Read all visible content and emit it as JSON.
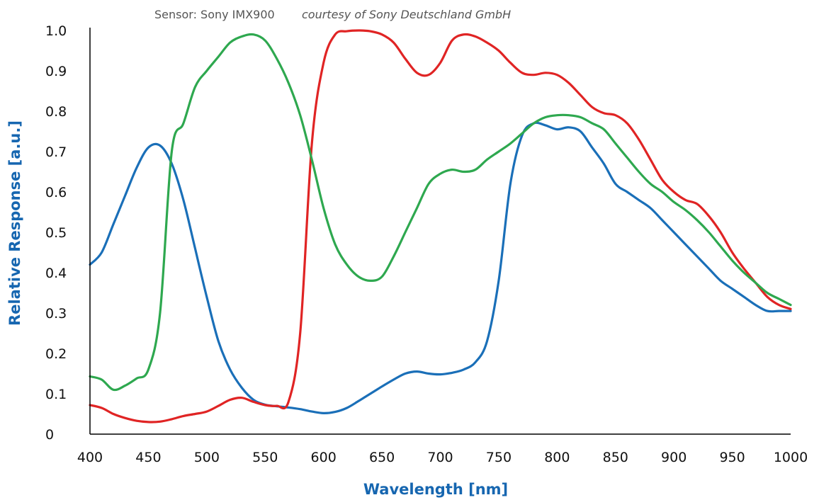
{
  "chart_data": {
    "type": "line",
    "title": "",
    "subtitle_sensor": "Sensor: Sony IMX900",
    "subtitle_credit": "courtesy of Sony Deutschland GmbH",
    "xlabel": "Wavelength [nm]",
    "ylabel": "Relative Response [a.u.]",
    "xlim": [
      400,
      1000
    ],
    "ylim": [
      0,
      1.0
    ],
    "x_ticks": [
      "400",
      "450",
      "500",
      "550",
      "600",
      "650",
      "700",
      "750",
      "800",
      "850",
      "900",
      "950",
      "1000"
    ],
    "y_ticks": [
      "0",
      "0.1",
      "0.2",
      "0.3",
      "0.4",
      "0.5",
      "0.6",
      "0.7",
      "0.8",
      "0.9",
      "1.0"
    ],
    "grid": false,
    "legend": "none",
    "axis_title_color": "#1666b0",
    "series": [
      {
        "color": "#1a6fb8",
        "x": [
          400,
          410,
          420,
          430,
          440,
          450,
          460,
          470,
          480,
          490,
          500,
          510,
          520,
          530,
          540,
          550,
          560,
          570,
          580,
          590,
          600,
          610,
          620,
          630,
          640,
          650,
          660,
          670,
          680,
          690,
          700,
          710,
          720,
          730,
          740,
          750,
          760,
          770,
          780,
          790,
          800,
          810,
          820,
          830,
          840,
          850,
          860,
          870,
          880,
          890,
          900,
          910,
          920,
          930,
          940,
          950,
          960,
          970,
          980,
          990,
          1000
        ],
        "values": [
          0.42,
          0.45,
          0.52,
          0.59,
          0.66,
          0.71,
          0.715,
          0.67,
          0.58,
          0.46,
          0.34,
          0.23,
          0.16,
          0.115,
          0.085,
          0.073,
          0.069,
          0.066,
          0.062,
          0.056,
          0.052,
          0.055,
          0.065,
          0.082,
          0.1,
          0.118,
          0.135,
          0.15,
          0.155,
          0.15,
          0.148,
          0.152,
          0.16,
          0.178,
          0.23,
          0.38,
          0.62,
          0.74,
          0.77,
          0.765,
          0.755,
          0.76,
          0.75,
          0.71,
          0.67,
          0.62,
          0.6,
          0.58,
          0.56,
          0.53,
          0.5,
          0.47,
          0.44,
          0.41,
          0.38,
          0.36,
          0.34,
          0.32,
          0.305,
          0.305,
          0.305
        ]
      },
      {
        "color": "#e02424",
        "x": [
          400,
          410,
          420,
          430,
          440,
          450,
          460,
          470,
          480,
          490,
          500,
          510,
          520,
          530,
          540,
          550,
          560,
          570,
          580,
          590,
          600,
          610,
          620,
          630,
          640,
          650,
          660,
          670,
          680,
          690,
          700,
          710,
          720,
          730,
          740,
          750,
          760,
          770,
          780,
          790,
          800,
          810,
          820,
          830,
          840,
          850,
          860,
          870,
          880,
          890,
          900,
          910,
          920,
          930,
          940,
          950,
          960,
          970,
          980,
          990,
          1000
        ],
        "values": [
          0.072,
          0.065,
          0.05,
          0.04,
          0.033,
          0.03,
          0.031,
          0.037,
          0.045,
          0.05,
          0.056,
          0.07,
          0.085,
          0.09,
          0.08,
          0.072,
          0.07,
          0.08,
          0.25,
          0.72,
          0.92,
          0.99,
          0.998,
          1.0,
          0.998,
          0.99,
          0.97,
          0.93,
          0.895,
          0.89,
          0.92,
          0.975,
          0.99,
          0.985,
          0.97,
          0.95,
          0.92,
          0.895,
          0.89,
          0.895,
          0.89,
          0.87,
          0.84,
          0.81,
          0.795,
          0.79,
          0.77,
          0.73,
          0.68,
          0.63,
          0.6,
          0.58,
          0.57,
          0.54,
          0.5,
          0.45,
          0.41,
          0.375,
          0.34,
          0.32,
          0.31
        ]
      },
      {
        "color": "#2ea84f",
        "x": [
          400,
          410,
          420,
          430,
          440,
          450,
          460,
          470,
          480,
          490,
          500,
          510,
          520,
          530,
          540,
          550,
          560,
          570,
          580,
          590,
          600,
          610,
          620,
          630,
          640,
          650,
          660,
          670,
          680,
          690,
          700,
          710,
          720,
          730,
          740,
          750,
          760,
          770,
          780,
          790,
          800,
          810,
          820,
          830,
          840,
          850,
          860,
          870,
          880,
          890,
          900,
          910,
          920,
          930,
          940,
          950,
          960,
          970,
          980,
          990,
          1000
        ],
        "values": [
          0.143,
          0.135,
          0.11,
          0.12,
          0.138,
          0.16,
          0.3,
          0.7,
          0.77,
          0.86,
          0.9,
          0.935,
          0.97,
          0.985,
          0.99,
          0.975,
          0.93,
          0.87,
          0.79,
          0.68,
          0.56,
          0.47,
          0.42,
          0.39,
          0.38,
          0.39,
          0.44,
          0.5,
          0.56,
          0.62,
          0.645,
          0.655,
          0.65,
          0.655,
          0.68,
          0.7,
          0.72,
          0.745,
          0.77,
          0.785,
          0.79,
          0.79,
          0.785,
          0.77,
          0.755,
          0.72,
          0.685,
          0.65,
          0.62,
          0.6,
          0.575,
          0.555,
          0.53,
          0.5,
          0.465,
          0.43,
          0.4,
          0.375,
          0.35,
          0.335,
          0.32
        ]
      }
    ]
  }
}
